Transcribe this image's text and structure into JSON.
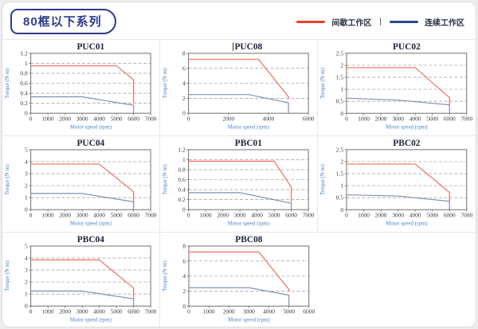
{
  "page": {
    "badge": "80框以下系列"
  },
  "legend": {
    "items": [
      {
        "label": "间歇工作区",
        "color": "#e8432c"
      },
      {
        "label": "连续工作区",
        "color": "#2b4a8b"
      }
    ],
    "separator": "|"
  },
  "style": {
    "red_line": "#e97061",
    "blue_line": "#7e90b6",
    "grid_line": "#9a9a9a",
    "plot_border": "#6e6e6e",
    "title_color": "#1c2238",
    "tick_color": "#3a3a3a",
    "axis_label_color": "#4a84c4"
  },
  "chart_data": [
    {
      "type": "line",
      "title": "PUC01",
      "cursor_artifact": false,
      "xlabel": "Motor speed (rpm)",
      "ylabel": "Torque (N·m)",
      "xlim": [
        0,
        7000
      ],
      "ylim": [
        0,
        1.2
      ],
      "xticks": [
        0,
        1000,
        2000,
        3000,
        4000,
        5000,
        6000,
        7000
      ],
      "yticks": [
        0,
        0.2,
        0.4,
        0.6,
        0.8,
        1,
        1.2
      ],
      "grid": "horizontal-dashed",
      "series": [
        {
          "name": "间歇工作区",
          "role": "red",
          "points": [
            [
              0,
              0.95
            ],
            [
              5000,
              0.95
            ],
            [
              6000,
              0.67
            ],
            [
              6000,
              0.2
            ]
          ]
        },
        {
          "name": "连续工作区",
          "role": "blue",
          "points": [
            [
              0,
              0.33
            ],
            [
              3000,
              0.33
            ],
            [
              6000,
              0.16
            ],
            [
              6000,
              0
            ]
          ]
        }
      ]
    },
    {
      "type": "line",
      "title": "PUC08",
      "cursor_artifact": true,
      "xlabel": "Motor speed (rpm)",
      "ylabel": "Torque (N·m)",
      "xlim": [
        0,
        6000
      ],
      "ylim": [
        0,
        8
      ],
      "xticks": [
        0,
        2000,
        4000,
        6000
      ],
      "yticks": [
        0,
        2,
        4,
        6,
        8
      ],
      "grid": "horizontal-dashed",
      "series": [
        {
          "name": "间歇工作区",
          "role": "red",
          "points": [
            [
              0,
              7.2
            ],
            [
              3500,
              7.2
            ],
            [
              5000,
              2.2
            ],
            [
              5000,
              1.9
            ]
          ]
        },
        {
          "name": "连续工作区",
          "role": "blue",
          "points": [
            [
              0,
              2.5
            ],
            [
              3000,
              2.5
            ],
            [
              5000,
              1.4
            ],
            [
              5000,
              0
            ]
          ]
        }
      ]
    },
    {
      "type": "line",
      "title": "PUC02",
      "cursor_artifact": false,
      "xlabel": "Motor speed (rpm)",
      "ylabel": "Torque (N·m)",
      "xlim": [
        0,
        7000
      ],
      "ylim": [
        0,
        2.5
      ],
      "xticks": [
        0,
        1000,
        2000,
        3000,
        4000,
        5000,
        6000,
        7000
      ],
      "yticks": [
        0,
        0.5,
        1,
        1.5,
        2,
        2.5
      ],
      "grid": "horizontal-dashed",
      "series": [
        {
          "name": "间歇工作区",
          "role": "red",
          "points": [
            [
              0,
              1.9
            ],
            [
              4000,
              1.9
            ],
            [
              6000,
              0.65
            ],
            [
              6000,
              0.35
            ]
          ]
        },
        {
          "name": "连续工作区",
          "role": "blue",
          "points": [
            [
              0,
              0.63
            ],
            [
              3000,
              0.55
            ],
            [
              6000,
              0.35
            ],
            [
              6000,
              0
            ]
          ]
        }
      ]
    },
    {
      "type": "line",
      "title": "PUC04",
      "cursor_artifact": false,
      "xlabel": "Motor speed (rpm)",
      "ylabel": "Torque (N·m)",
      "xlim": [
        0,
        7000
      ],
      "ylim": [
        0,
        5
      ],
      "xticks": [
        0,
        1000,
        2000,
        3000,
        4000,
        5000,
        6000,
        7000
      ],
      "yticks": [
        0,
        1,
        2,
        3,
        4,
        5
      ],
      "grid": "horizontal-dashed",
      "series": [
        {
          "name": "间歇工作区",
          "role": "red",
          "points": [
            [
              0,
              3.8
            ],
            [
              4000,
              3.8
            ],
            [
              6000,
              1.5
            ],
            [
              6000,
              0.2
            ]
          ]
        },
        {
          "name": "连续工作区",
          "role": "blue",
          "points": [
            [
              0,
              1.35
            ],
            [
              3000,
              1.35
            ],
            [
              6000,
              0.65
            ],
            [
              6000,
              0
            ]
          ]
        }
      ]
    },
    {
      "type": "line",
      "title": "PBC01",
      "cursor_artifact": false,
      "xlabel": "Motor speed (rpm)",
      "ylabel": "Torque (N·m)",
      "xlim": [
        0,
        7000
      ],
      "ylim": [
        0,
        1.2
      ],
      "xticks": [
        0,
        1000,
        2000,
        3000,
        4000,
        5000,
        6000,
        7000
      ],
      "yticks": [
        0,
        0.2,
        0.4,
        0.6,
        0.8,
        1,
        1.2
      ],
      "grid": "horizontal-dashed",
      "series": [
        {
          "name": "间歇工作区",
          "role": "red",
          "points": [
            [
              0,
              0.97
            ],
            [
              5000,
              0.97
            ],
            [
              6000,
              0.45
            ],
            [
              6000,
              0.15
            ]
          ]
        },
        {
          "name": "连续工作区",
          "role": "blue",
          "points": [
            [
              0,
              0.34
            ],
            [
              3000,
              0.34
            ],
            [
              6000,
              0.13
            ],
            [
              6000,
              0
            ]
          ]
        }
      ]
    },
    {
      "type": "line",
      "title": "PBC02",
      "cursor_artifact": false,
      "xlabel": "Motor speed (rpm)",
      "ylabel": "Torque (N·m)",
      "xlim": [
        0,
        7000
      ],
      "ylim": [
        0,
        2.5
      ],
      "xticks": [
        0,
        1000,
        2000,
        3000,
        4000,
        5000,
        6000,
        7000
      ],
      "yticks": [
        0,
        0.5,
        1,
        1.5,
        2,
        2.5
      ],
      "grid": "horizontal-dashed",
      "series": [
        {
          "name": "间歇工作区",
          "role": "red",
          "points": [
            [
              0,
              1.9
            ],
            [
              4000,
              1.9
            ],
            [
              6000,
              0.72
            ],
            [
              6000,
              0.35
            ]
          ]
        },
        {
          "name": "连续工作区",
          "role": "blue",
          "points": [
            [
              0,
              0.62
            ],
            [
              3000,
              0.57
            ],
            [
              6000,
              0.35
            ],
            [
              6000,
              0
            ]
          ]
        }
      ]
    },
    {
      "type": "line",
      "title": "PBC04",
      "cursor_artifact": false,
      "xlabel": "Motor speed (rpm)",
      "ylabel": "Torque (N·m)",
      "xlim": [
        0,
        7000
      ],
      "ylim": [
        0,
        5
      ],
      "xticks": [
        0,
        1000,
        2000,
        3000,
        4000,
        5000,
        6000,
        7000
      ],
      "yticks": [
        0,
        1,
        2,
        3,
        4,
        5
      ],
      "grid": "horizontal-dashed",
      "series": [
        {
          "name": "间歇工作区",
          "role": "red",
          "points": [
            [
              0,
              3.85
            ],
            [
              4000,
              3.85
            ],
            [
              6000,
              1.5
            ],
            [
              6000,
              0.6
            ]
          ]
        },
        {
          "name": "连续工作区",
          "role": "blue",
          "points": [
            [
              0,
              1.25
            ],
            [
              3000,
              1.25
            ],
            [
              6000,
              0.6
            ],
            [
              6000,
              0
            ]
          ]
        }
      ]
    },
    {
      "type": "line",
      "title": "PBC08",
      "cursor_artifact": false,
      "xlabel": "Motor speed (rpm)",
      "ylabel": "Torque (N·m)",
      "xlim": [
        0,
        6000
      ],
      "ylim": [
        0,
        8
      ],
      "xticks": [
        0,
        1000,
        2000,
        3000,
        4000,
        5000,
        6000
      ],
      "yticks": [
        0,
        2,
        4,
        6,
        8
      ],
      "grid": "horizontal-dashed",
      "series": [
        {
          "name": "间歇工作区",
          "role": "red",
          "points": [
            [
              0,
              7.2
            ],
            [
              3500,
              7.2
            ],
            [
              5000,
              2.2
            ],
            [
              5000,
              1.9
            ]
          ]
        },
        {
          "name": "连续工作区",
          "role": "blue",
          "points": [
            [
              0,
              2.45
            ],
            [
              3000,
              2.45
            ],
            [
              5000,
              1.45
            ],
            [
              5000,
              0
            ]
          ]
        }
      ]
    }
  ]
}
